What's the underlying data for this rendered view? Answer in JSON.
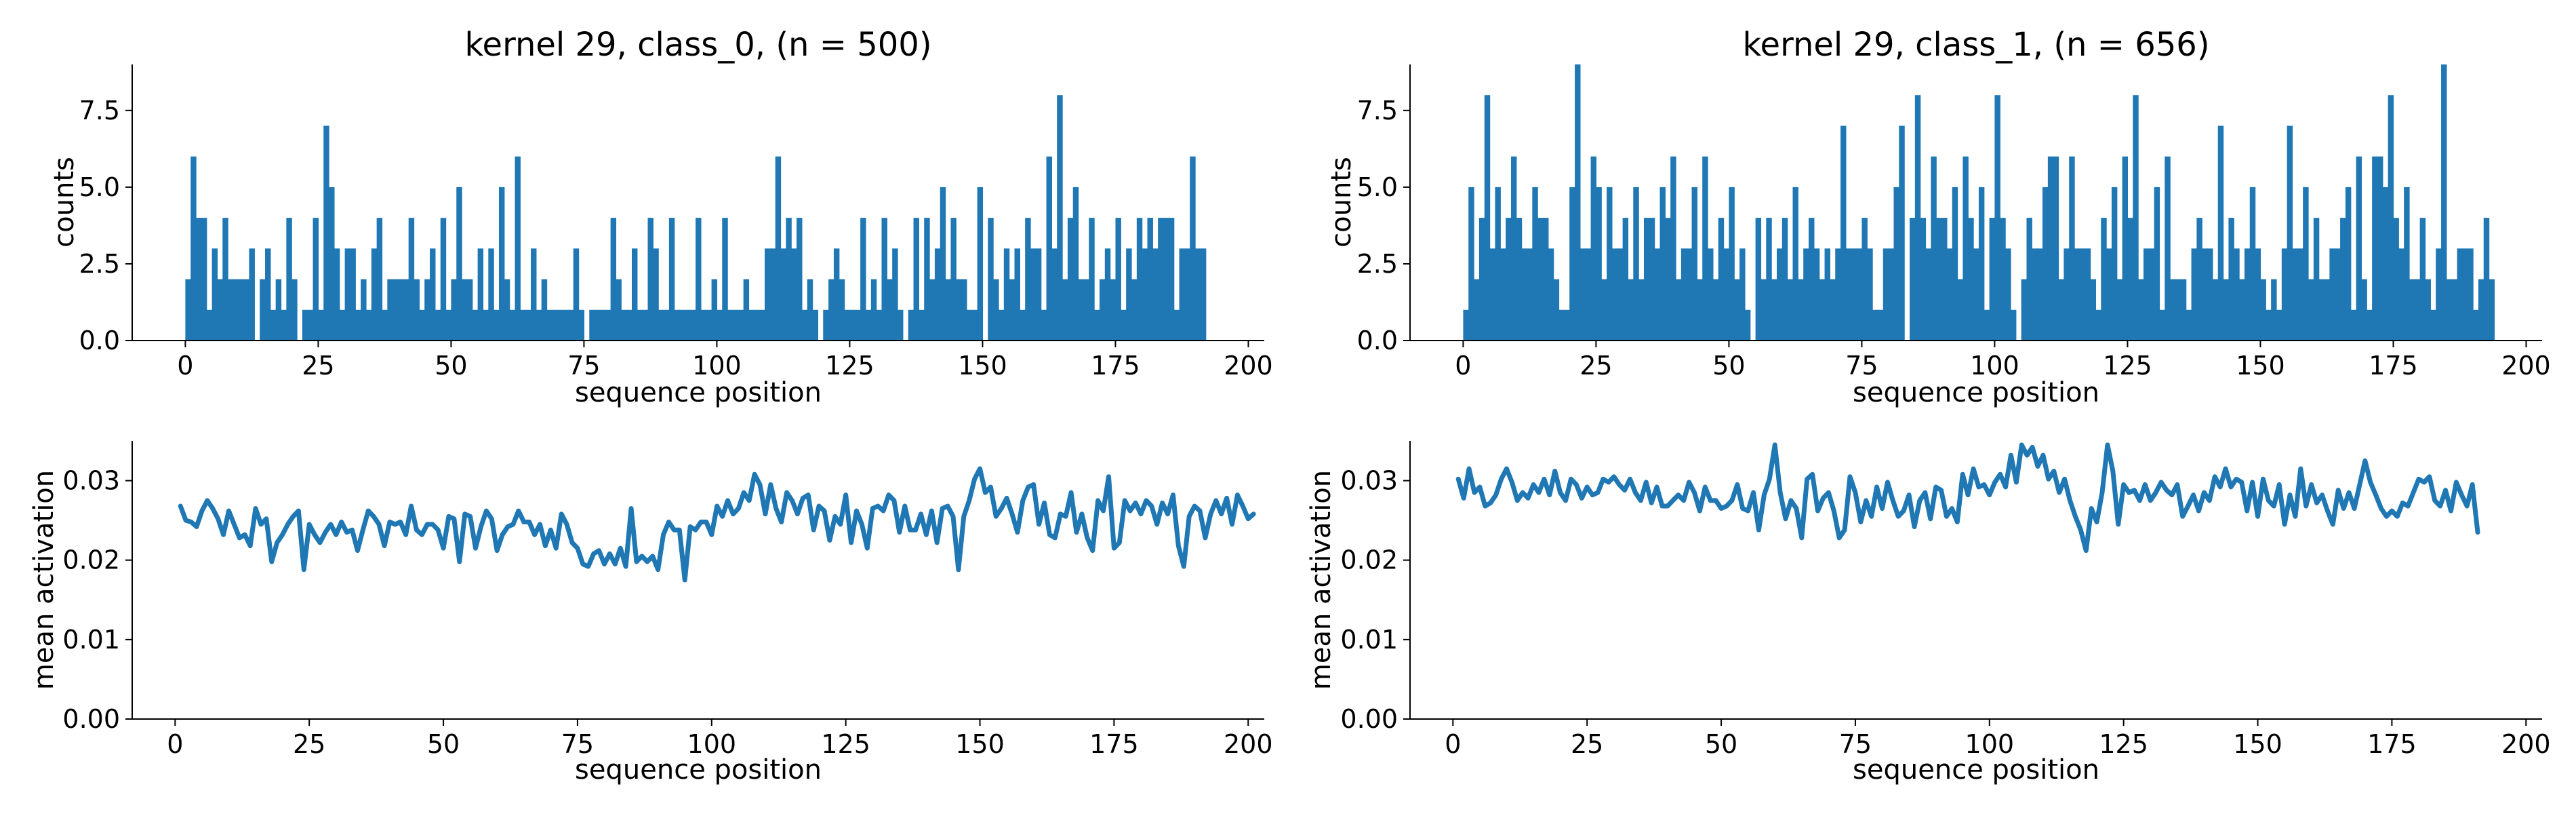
{
  "colors": {
    "series": "#1f77b4",
    "axis": "#000000"
  },
  "chart_data": [
    {
      "type": "bar",
      "panel": "top-left",
      "title": "kernel 29, class_0, (n = 500)",
      "xlabel": "sequence position",
      "ylabel": "counts",
      "xlim": [
        -10,
        203
      ],
      "ylim": [
        0,
        9
      ],
      "xticks": [
        0,
        25,
        50,
        75,
        100,
        125,
        150,
        175,
        200
      ],
      "yticks": [
        0.0,
        2.5,
        5.0,
        7.5
      ],
      "xtick_labels": [
        "0",
        "25",
        "50",
        "75",
        "100",
        "125",
        "150",
        "175",
        "200"
      ],
      "ytick_labels": [
        "0.0",
        "2.5",
        "5.0",
        "7.5"
      ],
      "grid": false,
      "bins_start": 0,
      "bin_width": 1,
      "values": [
        2,
        6,
        4,
        4,
        1,
        3,
        2,
        4,
        2,
        2,
        2,
        2,
        3,
        0,
        2,
        3,
        1,
        2,
        1,
        4,
        2,
        0,
        1,
        1,
        4,
        1,
        7,
        5,
        3,
        1,
        3,
        3,
        1,
        2,
        1,
        3,
        4,
        1,
        2,
        2,
        2,
        2,
        4,
        2,
        1,
        2,
        3,
        1,
        4,
        1,
        2,
        5,
        2,
        2,
        1,
        3,
        1,
        3,
        1,
        5,
        2,
        1,
        6,
        1,
        1,
        3,
        1,
        2,
        1,
        1,
        1,
        1,
        1,
        3,
        1,
        0,
        1,
        1,
        1,
        1,
        4,
        2,
        1,
        1,
        3,
        1,
        1,
        4,
        3,
        1,
        1,
        4,
        1,
        1,
        1,
        1,
        4,
        1,
        1,
        2,
        1,
        4,
        1,
        1,
        1,
        2,
        1,
        1,
        1,
        3,
        3,
        6,
        3,
        4,
        3,
        4,
        1,
        2,
        1,
        0,
        1,
        2,
        3,
        2,
        1,
        1,
        1,
        4,
        1,
        2,
        1,
        4,
        2,
        3,
        1,
        0,
        1,
        4,
        1,
        4,
        2,
        3,
        5,
        2,
        4,
        2,
        2,
        1,
        1,
        5,
        0,
        4,
        2,
        1,
        3,
        2,
        3,
        1,
        4,
        3,
        3,
        1,
        6,
        3,
        8,
        2,
        4,
        5,
        2,
        2,
        4,
        1,
        2,
        3,
        2,
        4,
        1,
        3,
        2,
        4,
        3,
        4,
        3,
        4,
        4,
        4,
        1,
        3,
        3,
        6,
        3,
        3,
        0
      ],
      "bar_color": "#1f77b4"
    },
    {
      "type": "bar",
      "panel": "top-right",
      "title": "kernel 29, class_1, (n = 656)",
      "xlabel": "sequence position",
      "ylabel": "counts",
      "xlim": [
        -10,
        203
      ],
      "ylim": [
        0,
        9
      ],
      "xticks": [
        0,
        25,
        50,
        75,
        100,
        125,
        150,
        175,
        200
      ],
      "yticks": [
        0.0,
        2.5,
        5.0,
        7.5
      ],
      "xtick_labels": [
        "0",
        "25",
        "50",
        "75",
        "100",
        "125",
        "150",
        "175",
        "200"
      ],
      "ytick_labels": [
        "0.0",
        "2.5",
        "5.0",
        "7.5"
      ],
      "grid": false,
      "bins_start": 0,
      "bin_width": 1,
      "values": [
        1,
        5,
        2,
        4,
        8,
        3,
        5,
        3,
        4,
        6,
        4,
        3,
        3,
        5,
        4,
        4,
        3,
        2,
        1,
        1,
        5,
        9,
        3,
        3,
        6,
        5,
        2,
        5,
        3,
        3,
        4,
        2,
        5,
        2,
        4,
        4,
        3,
        5,
        4,
        6,
        2,
        3,
        3,
        5,
        2,
        6,
        3,
        2,
        4,
        3,
        5,
        2,
        3,
        1,
        0,
        4,
        2,
        4,
        2,
        3,
        4,
        2,
        5,
        2,
        3,
        4,
        3,
        2,
        3,
        2,
        3,
        7,
        3,
        3,
        3,
        4,
        3,
        1,
        1,
        3,
        3,
        5,
        7,
        0,
        4,
        8,
        4,
        3,
        6,
        4,
        4,
        3,
        5,
        2,
        6,
        4,
        3,
        5,
        1,
        4,
        8,
        4,
        3,
        1,
        0,
        2,
        4,
        3,
        3,
        5,
        6,
        6,
        2,
        3,
        6,
        3,
        3,
        3,
        2,
        1,
        4,
        3,
        5,
        2,
        6,
        4,
        8,
        2,
        3,
        3,
        5,
        1,
        6,
        2,
        2,
        2,
        1,
        3,
        4,
        3,
        3,
        2,
        7,
        2,
        4,
        3,
        2,
        3,
        5,
        3,
        2,
        1,
        2,
        1,
        3,
        7,
        3,
        3,
        5,
        2,
        4,
        2,
        2,
        3,
        3,
        4,
        5,
        1,
        6,
        2,
        1,
        6,
        6,
        5,
        8,
        4,
        3,
        5,
        2,
        2,
        4,
        2,
        1,
        3,
        9,
        2,
        2,
        3,
        3,
        3,
        1,
        2,
        4,
        2,
        0
      ],
      "bar_color": "#1f77b4"
    },
    {
      "type": "line",
      "panel": "bottom-left",
      "title": "",
      "xlabel": "sequence position",
      "ylabel": "mean activation",
      "xlim": [
        -8,
        203
      ],
      "ylim": [
        0,
        0.035
      ],
      "xticks": [
        0,
        25,
        50,
        75,
        100,
        125,
        150,
        175,
        200
      ],
      "yticks": [
        0.0,
        0.01,
        0.02,
        0.03
      ],
      "xtick_labels": [
        "0",
        "25",
        "50",
        "75",
        "100",
        "125",
        "150",
        "175",
        "200"
      ],
      "ytick_labels": [
        "0.00",
        "0.01",
        "0.02",
        "0.03"
      ],
      "grid": false,
      "x_start": 1,
      "x_step": 1,
      "values": [
        0.0268,
        0.025,
        0.0248,
        0.0242,
        0.0262,
        0.0275,
        0.0265,
        0.0252,
        0.0232,
        0.0262,
        0.0245,
        0.0228,
        0.0232,
        0.0218,
        0.0265,
        0.0245,
        0.0252,
        0.0198,
        0.0222,
        0.0232,
        0.0245,
        0.0255,
        0.0262,
        0.0188,
        0.0245,
        0.0232,
        0.0222,
        0.0235,
        0.0245,
        0.0232,
        0.0248,
        0.0235,
        0.0238,
        0.0212,
        0.0238,
        0.0262,
        0.0255,
        0.0245,
        0.0218,
        0.0248,
        0.0245,
        0.0248,
        0.0232,
        0.0268,
        0.0238,
        0.0232,
        0.0245,
        0.0245,
        0.0238,
        0.0215,
        0.0255,
        0.0252,
        0.0198,
        0.0258,
        0.0255,
        0.0215,
        0.0242,
        0.0262,
        0.0252,
        0.0212,
        0.0232,
        0.0242,
        0.0245,
        0.0262,
        0.0248,
        0.0248,
        0.0232,
        0.0245,
        0.0218,
        0.0238,
        0.0215,
        0.0258,
        0.0245,
        0.0222,
        0.0215,
        0.0195,
        0.0192,
        0.0208,
        0.0212,
        0.0195,
        0.0208,
        0.0195,
        0.0215,
        0.0192,
        0.0265,
        0.0198,
        0.0205,
        0.0198,
        0.0205,
        0.0188,
        0.0232,
        0.0248,
        0.0238,
        0.0238,
        0.0175,
        0.0242,
        0.0238,
        0.0248,
        0.0248,
        0.0232,
        0.0268,
        0.0255,
        0.0275,
        0.0258,
        0.0265,
        0.0285,
        0.0275,
        0.0308,
        0.0295,
        0.0258,
        0.0295,
        0.0265,
        0.0248,
        0.0285,
        0.0275,
        0.0258,
        0.0278,
        0.0282,
        0.0238,
        0.0268,
        0.0262,
        0.0225,
        0.0255,
        0.0245,
        0.0282,
        0.0222,
        0.0262,
        0.0245,
        0.0215,
        0.0265,
        0.0268,
        0.0262,
        0.0282,
        0.0275,
        0.0235,
        0.0268,
        0.0238,
        0.0238,
        0.0258,
        0.0232,
        0.0262,
        0.0222,
        0.0265,
        0.0268,
        0.0255,
        0.0188,
        0.0255,
        0.0275,
        0.0302,
        0.0315,
        0.0285,
        0.0292,
        0.0255,
        0.0265,
        0.0278,
        0.0258,
        0.0235,
        0.0275,
        0.0292,
        0.0295,
        0.0245,
        0.0272,
        0.0232,
        0.0228,
        0.0258,
        0.0255,
        0.0285,
        0.0235,
        0.0258,
        0.0228,
        0.0212,
        0.0275,
        0.0262,
        0.0305,
        0.0215,
        0.0222,
        0.0275,
        0.0262,
        0.0272,
        0.0258,
        0.0275,
        0.0268,
        0.0245,
        0.0272,
        0.0258,
        0.0282,
        0.0218,
        0.0192,
        0.0255,
        0.0268,
        0.0262,
        0.0228,
        0.0258,
        0.0275,
        0.0258,
        0.0278,
        0.0245,
        0.0282,
        0.0268,
        0.0252,
        0.0258
      ],
      "line_color": "#1f77b4"
    },
    {
      "type": "line",
      "panel": "bottom-right",
      "title": "",
      "xlabel": "sequence position",
      "ylabel": "mean activation",
      "xlim": [
        -8,
        203
      ],
      "ylim": [
        0,
        0.035
      ],
      "xticks": [
        0,
        25,
        50,
        75,
        100,
        125,
        150,
        175,
        200
      ],
      "yticks": [
        0.0,
        0.01,
        0.02,
        0.03
      ],
      "xtick_labels": [
        "0",
        "25",
        "50",
        "75",
        "100",
        "125",
        "150",
        "175",
        "200"
      ],
      "ytick_labels": [
        "0.00",
        "0.01",
        "0.02",
        "0.03"
      ],
      "grid": false,
      "x_start": 1,
      "x_step": 1,
      "values": [
        0.0302,
        0.0278,
        0.0315,
        0.0285,
        0.0292,
        0.0268,
        0.0272,
        0.0282,
        0.0302,
        0.0315,
        0.0298,
        0.0275,
        0.0285,
        0.0278,
        0.0295,
        0.0285,
        0.0302,
        0.0282,
        0.0312,
        0.0285,
        0.0275,
        0.0302,
        0.0295,
        0.0278,
        0.0292,
        0.0282,
        0.0285,
        0.0302,
        0.0298,
        0.0305,
        0.0295,
        0.0288,
        0.0302,
        0.0285,
        0.0275,
        0.0298,
        0.0272,
        0.0292,
        0.0268,
        0.0268,
        0.0275,
        0.0282,
        0.0275,
        0.0298,
        0.0285,
        0.0262,
        0.0292,
        0.0275,
        0.0275,
        0.0265,
        0.0268,
        0.0275,
        0.0295,
        0.0265,
        0.0262,
        0.0285,
        0.0238,
        0.0282,
        0.0302,
        0.0345,
        0.0285,
        0.0252,
        0.0275,
        0.0265,
        0.0228,
        0.0302,
        0.0308,
        0.0262,
        0.0278,
        0.0285,
        0.0262,
        0.0228,
        0.0238,
        0.0305,
        0.0285,
        0.0248,
        0.0275,
        0.0255,
        0.0292,
        0.0265,
        0.0298,
        0.0275,
        0.0255,
        0.0262,
        0.0282,
        0.0242,
        0.0275,
        0.0285,
        0.0252,
        0.0292,
        0.0288,
        0.0255,
        0.0265,
        0.0248,
        0.0308,
        0.0282,
        0.0315,
        0.0292,
        0.0295,
        0.0282,
        0.0298,
        0.0308,
        0.0292,
        0.0332,
        0.0298,
        0.0345,
        0.0332,
        0.0342,
        0.0318,
        0.0332,
        0.0302,
        0.0312,
        0.0285,
        0.0302,
        0.0275,
        0.0255,
        0.0238,
        0.0212,
        0.0265,
        0.0248,
        0.0285,
        0.0345,
        0.0312,
        0.0245,
        0.0295,
        0.0285,
        0.0288,
        0.0275,
        0.0295,
        0.0275,
        0.0285,
        0.0298,
        0.0288,
        0.0282,
        0.0295,
        0.0255,
        0.0268,
        0.0282,
        0.0262,
        0.0285,
        0.0275,
        0.0305,
        0.0292,
        0.0315,
        0.0292,
        0.0302,
        0.0298,
        0.0262,
        0.0298,
        0.0255,
        0.0302,
        0.0275,
        0.0268,
        0.0295,
        0.0245,
        0.0282,
        0.0255,
        0.0315,
        0.0268,
        0.0295,
        0.0272,
        0.0282,
        0.0262,
        0.0245,
        0.0288,
        0.0265,
        0.0285,
        0.0265,
        0.0295,
        0.0325,
        0.0298,
        0.0282,
        0.0265,
        0.0255,
        0.0262,
        0.0255,
        0.0272,
        0.0268,
        0.0285,
        0.0302,
        0.0298,
        0.0305,
        0.0275,
        0.0268,
        0.0288,
        0.0262,
        0.0298,
        0.0282,
        0.0268,
        0.0295,
        0.0235
      ],
      "line_color": "#1f77b4"
    }
  ]
}
